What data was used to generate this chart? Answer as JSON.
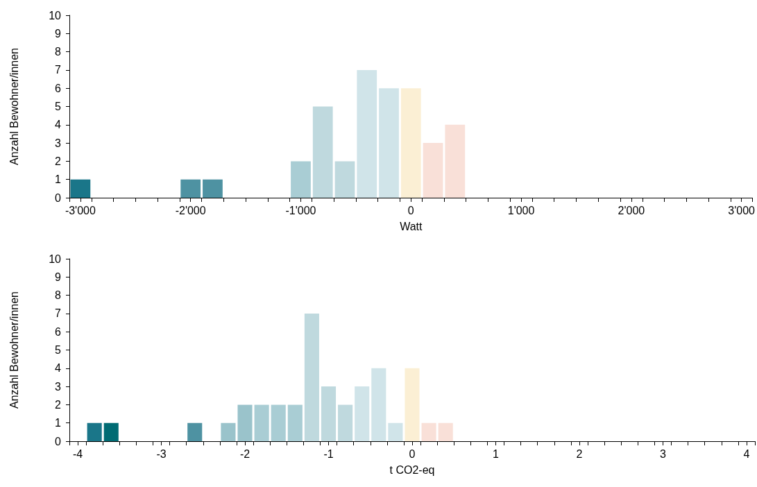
{
  "chart_data": [
    {
      "type": "histogram",
      "xlabel": "Watt",
      "ylabel": "Anzahl Bewohner/innen",
      "bins": [
        -3100,
        -2900,
        -2700,
        -2500,
        -2300,
        -2100,
        -1900,
        -1700,
        -1500,
        -1300,
        -1100,
        -900,
        -700,
        -500,
        -300,
        -100,
        100,
        300,
        500,
        700,
        900,
        1100,
        1300,
        1500,
        1700,
        1900,
        2100,
        2300,
        2500,
        2700,
        2900,
        3100
      ],
      "values": [
        1,
        0,
        0,
        0,
        0,
        1,
        1,
        0,
        0,
        0,
        2,
        5,
        2,
        7,
        6,
        6,
        3,
        4,
        0,
        0,
        0,
        0,
        0,
        0,
        0,
        0,
        0,
        0,
        0,
        0,
        0
      ],
      "colors": [
        "#1a7689",
        null,
        null,
        null,
        null,
        "#4e92a2",
        "#4e92a2",
        null,
        null,
        null,
        "#a9cdd4",
        "#bfd9de",
        "#bfd9de",
        "#d0e4e9",
        "#d0e4e9",
        "#fbefd4",
        "#f9e0d8",
        "#f9e0d8",
        null,
        null,
        null,
        null,
        null,
        null,
        null,
        null,
        null,
        null,
        null,
        null,
        null
      ],
      "xlim": [
        -3100,
        3100
      ],
      "xticks": [
        {
          "value": -3000,
          "label": "-3'000"
        },
        {
          "value": -2000,
          "label": "-2'000"
        },
        {
          "value": -1000,
          "label": "-1'000"
        },
        0,
        {
          "value": 1000,
          "label": "1'000"
        },
        {
          "value": 2000,
          "label": "2'000"
        },
        {
          "value": 3000,
          "label": "3'000"
        },
        {
          "value": -3100,
          "label": null
        },
        {
          "value": -2900,
          "label": null
        },
        {
          "value": -2700,
          "label": null
        },
        {
          "value": -2500,
          "label": null
        },
        {
          "value": -2300,
          "label": null
        },
        {
          "value": -2100,
          "label": null
        },
        {
          "value": -1900,
          "label": null
        },
        {
          "value": -1700,
          "label": null
        },
        {
          "value": -1500,
          "label": null
        },
        {
          "value": -1300,
          "label": null
        },
        {
          "value": -1100,
          "label": null
        },
        {
          "value": -900,
          "label": null
        },
        {
          "value": -700,
          "label": null
        },
        {
          "value": -500,
          "label": null
        },
        {
          "value": -300,
          "label": null
        },
        {
          "value": -100,
          "label": null
        },
        {
          "value": 100,
          "label": null
        },
        {
          "value": 300,
          "label": null
        },
        {
          "value": 500,
          "label": null
        },
        {
          "value": 700,
          "label": null
        },
        {
          "value": 900,
          "label": null
        },
        {
          "value": 1100,
          "label": null
        },
        {
          "value": 1300,
          "label": null
        },
        {
          "value": 1500,
          "label": null
        },
        {
          "value": 1700,
          "label": null
        },
        {
          "value": 1900,
          "label": null
        },
        {
          "value": 2100,
          "label": null
        },
        {
          "value": 2300,
          "label": null
        },
        {
          "value": 2500,
          "label": null
        },
        {
          "value": 2700,
          "label": null
        },
        {
          "value": 2900,
          "label": null
        },
        {
          "value": 3100,
          "label": null
        }
      ],
      "ylim": [
        0,
        10
      ],
      "yticks": [
        0,
        1,
        2,
        3,
        4,
        5,
        6,
        7,
        8,
        9,
        10
      ]
    },
    {
      "type": "histogram",
      "xlabel": "t CO2-eq",
      "ylabel": "Anzahl Bewohner/innen",
      "bins": [
        -4.1,
        -3.9,
        -3.7,
        -3.5,
        -3.3,
        -3.1,
        -2.9,
        -2.7,
        -2.5,
        -2.3,
        -2.1,
        -1.9,
        -1.7,
        -1.5,
        -1.3,
        -1.1,
        -0.9,
        -0.7,
        -0.5,
        -0.3,
        -0.1,
        0.1,
        0.3,
        0.5,
        0.7,
        0.9,
        1.1,
        1.3,
        1.5,
        1.7,
        1.9,
        2.1,
        2.3,
        2.5,
        2.7,
        2.9,
        3.1,
        3.3,
        3.5,
        3.7,
        3.9,
        4.1
      ],
      "values": [
        0,
        1,
        1,
        0,
        0,
        0,
        0,
        1,
        0,
        1,
        2,
        2,
        2,
        2,
        7,
        3,
        2,
        3,
        4,
        1,
        4,
        1,
        1,
        0,
        0,
        0,
        0,
        0,
        0,
        0,
        0,
        0,
        0,
        0,
        0,
        0,
        0,
        0,
        0,
        0,
        0
      ],
      "colors": [
        null,
        "#1a7689",
        "#006b73",
        null,
        null,
        null,
        null,
        "#4e92a2",
        null,
        "#9ac3cb",
        "#9ac3cb",
        "#a9cdd4",
        "#a9cdd4",
        "#a9cdd4",
        "#bfd9de",
        "#bfd9de",
        "#bfd9de",
        "#d0e4e9",
        "#d0e4e9",
        "#d0e4e9",
        "#fbefd4",
        "#f9e0d8",
        "#f9e0d8",
        null,
        null,
        null,
        null,
        null,
        null,
        null,
        null,
        null,
        null,
        null,
        null,
        null,
        null,
        null,
        null,
        null,
        null
      ],
      "xlim": [
        -4.1,
        4.1
      ],
      "xticks": [
        -4,
        -3,
        -2,
        -1,
        0,
        1,
        2,
        3,
        4,
        {
          "value": -4.1,
          "label": null
        },
        {
          "value": -3.9,
          "label": null
        },
        {
          "value": -3.7,
          "label": null
        },
        {
          "value": -3.5,
          "label": null
        },
        {
          "value": -3.3,
          "label": null
        },
        {
          "value": -3.1,
          "label": null
        },
        {
          "value": -2.9,
          "label": null
        },
        {
          "value": -2.7,
          "label": null
        },
        {
          "value": -2.5,
          "label": null
        },
        {
          "value": -2.3,
          "label": null
        },
        {
          "value": -2.1,
          "label": null
        },
        {
          "value": -1.9,
          "label": null
        },
        {
          "value": -1.7,
          "label": null
        },
        {
          "value": -1.5,
          "label": null
        },
        {
          "value": -1.3,
          "label": null
        },
        {
          "value": -1.1,
          "label": null
        },
        {
          "value": -0.9,
          "label": null
        },
        {
          "value": -0.7,
          "label": null
        },
        {
          "value": -0.5,
          "label": null
        },
        {
          "value": -0.3,
          "label": null
        },
        {
          "value": -0.1,
          "label": null
        },
        {
          "value": 0.1,
          "label": null
        },
        {
          "value": 0.3,
          "label": null
        },
        {
          "value": 0.5,
          "label": null
        },
        {
          "value": 0.7,
          "label": null
        },
        {
          "value": 0.9,
          "label": null
        },
        {
          "value": 1.1,
          "label": null
        },
        {
          "value": 1.3,
          "label": null
        },
        {
          "value": 1.5,
          "label": null
        },
        {
          "value": 1.7,
          "label": null
        },
        {
          "value": 1.9,
          "label": null
        },
        {
          "value": 2.1,
          "label": null
        },
        {
          "value": 2.3,
          "label": null
        },
        {
          "value": 2.5,
          "label": null
        },
        {
          "value": 2.7,
          "label": null
        },
        {
          "value": 2.9,
          "label": null
        },
        {
          "value": 3.1,
          "label": null
        },
        {
          "value": 3.3,
          "label": null
        },
        {
          "value": 3.5,
          "label": null
        },
        {
          "value": 3.7,
          "label": null
        },
        {
          "value": 3.9,
          "label": null
        },
        {
          "value": 4.1,
          "label": null
        }
      ],
      "ylim": [
        0,
        10
      ],
      "yticks": [
        0,
        1,
        2,
        3,
        4,
        5,
        6,
        7,
        8,
        9,
        10
      ]
    }
  ]
}
